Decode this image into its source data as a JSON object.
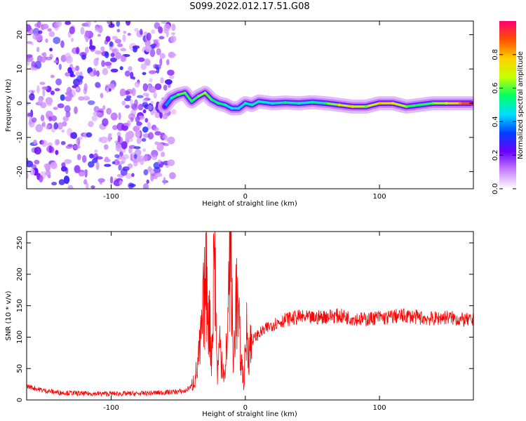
{
  "title": "S099.2022.012.17.51.G08",
  "chart_data": [
    {
      "type": "heatmap",
      "xlabel": "Height of straight line (km)",
      "ylabel": "Frequency (Hz)",
      "xlim": [
        -163,
        170
      ],
      "ylim": [
        -25,
        24
      ],
      "xticks": [
        -100,
        0,
        100
      ],
      "xtick_labels": [
        "-100",
        "0",
        "100"
      ],
      "yticks": [
        -20,
        -10,
        0,
        10,
        20
      ],
      "ytick_labels": [
        "-20",
        "-10",
        "0",
        "10",
        "20"
      ],
      "colorbar": {
        "label": "Normalized spectral amplitude",
        "range": [
          0,
          1
        ],
        "ticks": [
          0.0,
          0.2,
          0.4,
          0.6,
          0.8
        ],
        "tick_labels": [
          "0.0",
          "0.2",
          "0.4",
          "0.6",
          "0.8"
        ],
        "colors": [
          "#ffffff",
          "#c880ff",
          "#6a00ff",
          "#0040ff",
          "#00e0ff",
          "#00ff60",
          "#c8ff00",
          "#ffd000",
          "#ff5000",
          "#ff0070"
        ]
      },
      "ridge": {
        "x": [
          -60,
          -55,
          -50,
          -45,
          -40,
          -35,
          -30,
          -25,
          -20,
          -15,
          -10,
          -5,
          0,
          5,
          10,
          20,
          30,
          40,
          50,
          60,
          70,
          80,
          90,
          100,
          110,
          120,
          130,
          140,
          150,
          160,
          168
        ],
        "y": [
          -1,
          1.5,
          2.5,
          3,
          0.5,
          2,
          3,
          1,
          0,
          -0.5,
          -1.5,
          -1.5,
          0,
          -0.5,
          0.5,
          0,
          0.2,
          0,
          0.3,
          0,
          -0.5,
          -1,
          -1,
          0,
          0,
          -1,
          -0.5,
          0,
          0,
          0,
          0
        ],
        "amplitude": [
          0.3,
          0.5,
          0.6,
          0.6,
          0.55,
          0.6,
          0.65,
          0.55,
          0.55,
          0.5,
          0.45,
          0.45,
          0.5,
          0.5,
          0.5,
          0.45,
          0.55,
          0.5,
          0.5,
          0.55,
          0.7,
          0.75,
          0.6,
          0.8,
          0.75,
          0.6,
          0.55,
          0.6,
          0.7,
          0.85,
          0.95
        ]
      },
      "noise_region_x": [
        -163,
        -53
      ]
    },
    {
      "type": "line",
      "xlabel": "Height of straight line (km)",
      "ylabel": "SNR (10 * v/v)",
      "xlim": [
        -163,
        170
      ],
      "ylim": [
        0,
        268
      ],
      "xticks": [
        -100,
        0,
        100
      ],
      "xtick_labels": [
        "-100",
        "0",
        "100"
      ],
      "yticks": [
        0,
        50,
        100,
        150,
        200,
        250
      ],
      "ytick_labels": [
        "0",
        "50",
        "100",
        "150",
        "200",
        "250"
      ],
      "color": "#ff0000",
      "x": [
        -163,
        -150,
        -140,
        -120,
        -100,
        -80,
        -60,
        -45,
        -40,
        -36,
        -33,
        -31,
        -29,
        -27,
        -25,
        -23,
        -21,
        -19,
        -17,
        -15,
        -13,
        -11,
        -9,
        -7,
        -5,
        -3,
        -1,
        1,
        3,
        5,
        10,
        20,
        30,
        40,
        50,
        60,
        70,
        80,
        90,
        100,
        105,
        110,
        120,
        130,
        140,
        150,
        160,
        170
      ],
      "y": [
        22,
        15,
        12,
        10,
        10,
        10,
        12,
        14,
        22,
        45,
        95,
        150,
        195,
        130,
        70,
        265,
        40,
        90,
        60,
        30,
        140,
        260,
        50,
        170,
        120,
        60,
        30,
        110,
        80,
        95,
        105,
        120,
        128,
        132,
        130,
        133,
        134,
        130,
        128,
        132,
        130,
        133,
        134,
        131,
        129,
        132,
        128,
        126
      ]
    }
  ]
}
